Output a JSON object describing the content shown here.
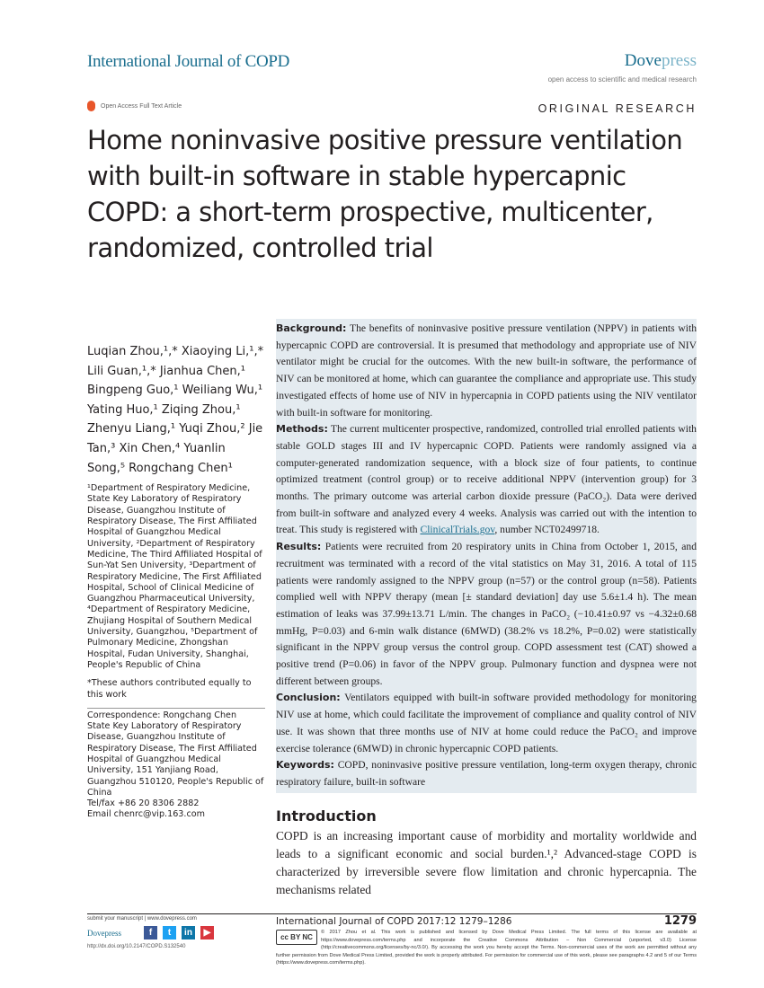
{
  "header": {
    "journal": "International Journal of COPD",
    "publisher_bold": "Dove",
    "publisher_light": "press",
    "tagline": "open access to scientific and medical research",
    "open_access": "Open Access Full Text Article",
    "article_type": "ORIGINAL RESEARCH"
  },
  "title": "Home noninvasive positive pressure ventilation with built-in software in stable hypercapnic COPD: a short-term prospective, multicenter, randomized, controlled trial",
  "authors": "Luqian Zhou,¹,* Xiaoying Li,¹,* Lili Guan,¹,* Jianhua Chen,¹ Bingpeng Guo,¹ Weiliang Wu,¹ Yating Huo,¹ Ziqing Zhou,¹ Zhenyu Liang,¹ Yuqi Zhou,² Jie Tan,³ Xin Chen,⁴ Yuanlin Song,⁵ Rongchang Chen¹",
  "affiliations": "¹Department of Respiratory Medicine, State Key Laboratory of Respiratory Disease, Guangzhou Institute of Respiratory Disease, The First Affiliated Hospital of Guangzhou Medical University, ²Department of Respiratory Medicine, The Third Affiliated Hospital of Sun-Yat Sen University, ³Department of Respiratory Medicine, The First Affiliated Hospital, School of Clinical Medicine of Guangzhou Pharmaceutical University, ⁴Department of Respiratory Medicine, Zhujiang Hospital of Southern Medical University, Guangzhou, ⁵Department of Pulmonary Medicine, Zhongshan Hospital, Fudan University, Shanghai, People's Republic of China",
  "footnote": "*These authors contributed equally to this work",
  "correspondence": [
    "Correspondence: Rongchang Chen",
    "State Key Laboratory of Respiratory Disease, Guangzhou Institute of Respiratory Disease, The First Affiliated Hospital of Guangzhou Medical University, 151 Yanjiang Road, Guangzhou 510120, People's Republic of China",
    "Tel/fax +86 20 8306 2882",
    "Email chenrc@vip.163.com"
  ],
  "abstract": {
    "background_label": "Background:",
    "background": "The benefits of noninvasive positive pressure ventilation (NPPV) in patients with hypercapnic COPD are controversial. It is presumed that methodology and appropriate use of NIV ventilator might be crucial for the outcomes. With the new built-in software, the performance of NIV can be monitored at home, which can guarantee the compliance and appropriate use. This study investigated effects of home use of NIV in hypercapnia in COPD patients using the NIV ventilator with built-in software for monitoring.",
    "methods_label": "Methods:",
    "methods_a": "The current multicenter prospective, randomized, controlled trial enrolled patients with stable GOLD stages III and IV hypercapnic COPD. Patients were randomly assigned via a computer-generated randomization sequence, with a block size of four patients, to continue optimized treatment (control group) or to receive additional NPPV (intervention group) for 3 months. The primary outcome was arterial carbon dioxide pressure (PaCO₂). Data were derived from built-in software and analyzed every 4 weeks. Analysis was carried out with the intention to treat. This study is registered with ",
    "methods_link": "ClinicalTrials.gov",
    "methods_b": ", number NCT02499718.",
    "results_label": "Results:",
    "results": "Patients were recruited from 20 respiratory units in China from October 1, 2015, and recruitment was terminated with a record of the vital statistics on May 31, 2016. A total of 115 patients were randomly assigned to the NPPV group (n=57) or the control group (n=58). Patients complied well with NPPV therapy (mean [± standard deviation] day use 5.6±1.4 h). The mean estimation of leaks was 37.99±13.71 L/min. The changes in PaCO₂ (−10.41±0.97 vs −4.32±0.68 mmHg, P=0.03) and 6-min walk distance (6MWD) (38.2% vs 18.2%, P=0.02) were statistically significant in the NPPV group versus the control group. COPD assessment test (CAT) showed a positive trend (P=0.06) in favor of the NPPV group. Pulmonary function and dyspnea were not different between groups.",
    "conclusion_label": "Conclusion:",
    "conclusion": "Ventilators equipped with built-in software provided methodology for monitoring NIV use at home, which could facilitate the improvement of compliance and quality control of NIV use. It was shown that three months use of NIV at home could reduce the PaCO₂ and improve exercise tolerance (6MWD) in chronic hypercapnic COPD patients.",
    "keywords_label": "Keywords:",
    "keywords": "COPD, noninvasive positive pressure ventilation, long-term oxygen therapy, chronic respiratory failure, built-in software"
  },
  "introduction": {
    "heading": "Introduction",
    "text": "COPD is an increasing important cause of morbidity and mortality worldwide and leads to a significant economic and social burden.¹,² Advanced-stage COPD is characterized by irreversible severe flow limitation and chronic hypercapnia. The mechanisms related"
  },
  "footer": {
    "submit": "submit your manuscript | www.dovepress.com",
    "publisher": "Dovepress",
    "social_icons": [
      "facebook-icon",
      "twitter-icon",
      "linkedin-icon",
      "youtube-icon"
    ],
    "doi": "http://dx.doi.org/10.2147/COPD.S132540",
    "citation": "International Journal of COPD 2017:12 1279–1286",
    "page_number": "1279",
    "cc_badge": "cc BY NC",
    "license_a": "© 2017 Zhou et al. This work is published and licensed by Dove Medical Press Limited. The full terms of this license are available at https://www.dovepress.com/terms.php and incorporate the Creative Commons Attribution – Non Commercial (unported, v3.0) License (http://creativecommons.org/licenses/by-nc/3.0/). By accessing the work you",
    "license_b": "hereby accept the Terms. Non-commercial uses of the work are permitted without any further permission from Dove Medical Press Limited, provided the work is properly attributed. For permission for commercial use of this work, please see paragraphs 4.2 and 5 of our Terms (https://www.dovepress.com/terms.php)."
  }
}
